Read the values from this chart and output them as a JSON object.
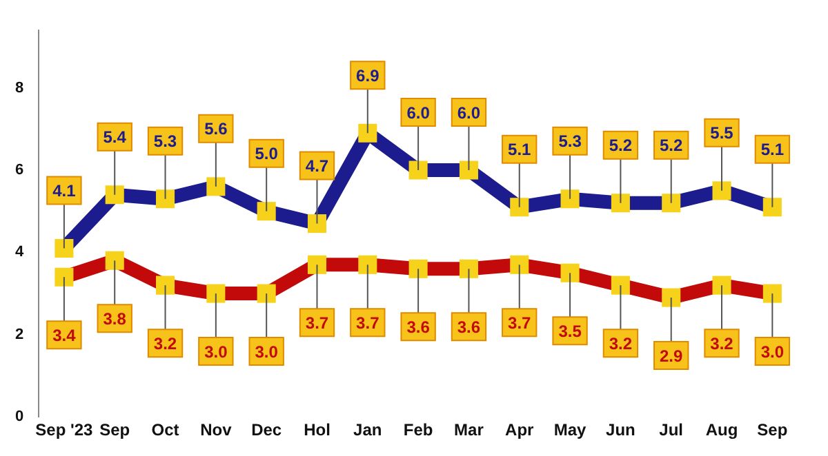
{
  "chart_data": {
    "type": "line",
    "categories": [
      "Sep '23",
      "Sep",
      "Oct",
      "Nov",
      "Dec",
      "Hol",
      "Jan",
      "Feb",
      "Mar",
      "Apr",
      "May",
      "Jun",
      "Jul",
      "Aug",
      "Sep"
    ],
    "series": [
      {
        "color": "#1c1c8f",
        "values": [
          4.1,
          5.4,
          5.3,
          5.6,
          5.0,
          4.7,
          6.9,
          6.0,
          6.0,
          5.1,
          5.3,
          5.2,
          5.2,
          5.5,
          5.1
        ],
        "value_labels": [
          "4.1",
          "5.4",
          "5.3",
          "5.6",
          "5.0",
          "4.7",
          "6.9",
          "6.0",
          "6.0",
          "5.1",
          "5.3",
          "5.2",
          "5.2",
          "5.5",
          "5.1"
        ]
      },
      {
        "color": "#c20a0a",
        "values": [
          3.4,
          3.8,
          3.2,
          3.0,
          3.0,
          3.7,
          3.7,
          3.6,
          3.6,
          3.7,
          3.5,
          3.2,
          2.9,
          3.2,
          3.0
        ],
        "value_labels": [
          "3.4",
          "3.8",
          "3.2",
          "3.0",
          "3.0",
          "3.7",
          "3.7",
          "3.6",
          "3.6",
          "3.7",
          "3.5",
          "3.2",
          "2.9",
          "3.2",
          "3.0"
        ]
      }
    ],
    "ylim": [
      0,
      9.4
    ],
    "yticks": [
      0,
      2,
      4,
      6,
      8
    ],
    "grid": false,
    "legend": false,
    "marker": "square"
  }
}
